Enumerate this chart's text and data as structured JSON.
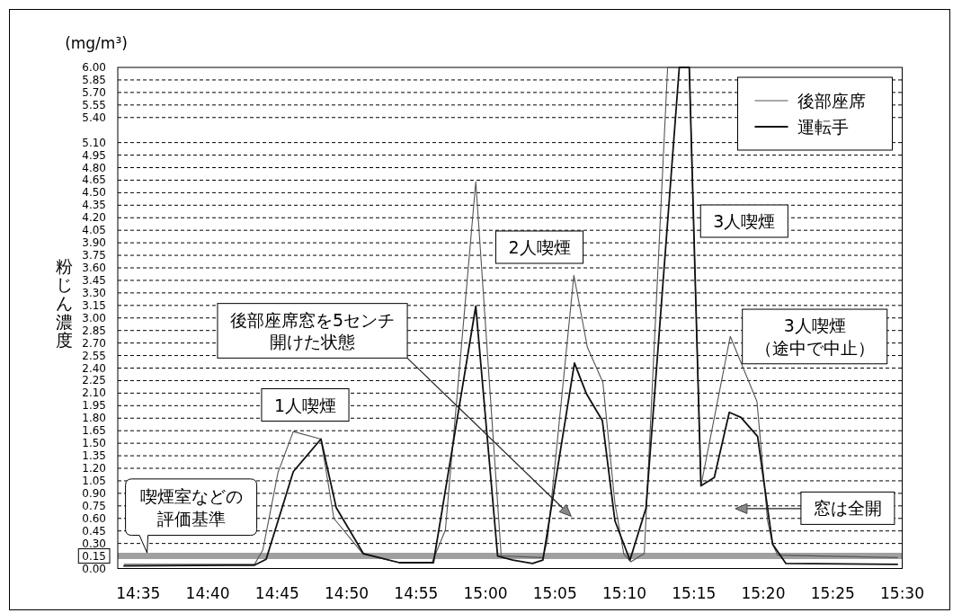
{
  "chart_data": {
    "type": "line",
    "ylabel": "粉じん濃度",
    "xlim": [
      14.5587,
      15.5
    ],
    "ylim": [
      0,
      6
    ],
    "xticks": [
      {
        "value": 14.5833,
        "label": "14:35"
      },
      {
        "value": 14.6667,
        "label": "14:40"
      },
      {
        "value": 14.75,
        "label": "14:45"
      },
      {
        "value": 14.8333,
        "label": "14:50"
      },
      {
        "value": 14.9167,
        "label": "14:55"
      },
      {
        "value": 15.0,
        "label": "15:00"
      },
      {
        "value": 15.0833,
        "label": "15:05"
      },
      {
        "value": 15.1667,
        "label": "15:10"
      },
      {
        "value": 15.25,
        "label": "15:15"
      },
      {
        "value": 15.3333,
        "label": "15:20"
      },
      {
        "value": 15.4167,
        "label": "15:25"
      },
      {
        "value": 15.5,
        "label": "15:30"
      }
    ],
    "yticks": [
      {
        "value": 0,
        "label": "0.00"
      },
      {
        "value": 0.15,
        "label": "0.15"
      },
      {
        "value": 0.3,
        "label": "0.30"
      },
      {
        "value": 0.45,
        "label": "0.45"
      },
      {
        "value": 0.6,
        "label": "0.60"
      },
      {
        "value": 0.75,
        "label": "0.75"
      },
      {
        "value": 0.9,
        "label": "0.90"
      },
      {
        "value": 1.05,
        "label": "1.05"
      },
      {
        "value": 1.2,
        "label": "1.20"
      },
      {
        "value": 1.35,
        "label": "1.35"
      },
      {
        "value": 1.5,
        "label": "1.50"
      },
      {
        "value": 1.65,
        "label": "1.65"
      },
      {
        "value": 1.8,
        "label": "1.80"
      },
      {
        "value": 1.95,
        "label": "1.95"
      },
      {
        "value": 2.1,
        "label": "2.10"
      },
      {
        "value": 2.25,
        "label": "2.25"
      },
      {
        "value": 2.4,
        "label": "2.40"
      },
      {
        "value": 2.55,
        "label": "2.55"
      },
      {
        "value": 2.7,
        "label": "2.70"
      },
      {
        "value": 2.85,
        "label": "2.85"
      },
      {
        "value": 3.0,
        "label": "3.00"
      },
      {
        "value": 3.15,
        "label": "3.15"
      },
      {
        "value": 3.3,
        "label": "3.30"
      },
      {
        "value": 3.45,
        "label": "3.45"
      },
      {
        "value": 3.6,
        "label": "3.60"
      },
      {
        "value": 3.75,
        "label": "3.75"
      },
      {
        "value": 3.9,
        "label": "3.90"
      },
      {
        "value": 4.05,
        "label": "4.05"
      },
      {
        "value": 4.2,
        "label": "4.20"
      },
      {
        "value": 4.35,
        "label": "4.35"
      },
      {
        "value": 4.5,
        "label": "4.50"
      },
      {
        "value": 4.65,
        "label": "4.65"
      },
      {
        "value": 4.8,
        "label": "4.80"
      },
      {
        "value": 4.95,
        "label": "4.95"
      },
      {
        "value": 5.1,
        "label": "5.10"
      },
      {
        "value": 5.4,
        "label": "5.40"
      },
      {
        "value": 5.55,
        "label": "5.55"
      },
      {
        "value": 5.7,
        "label": "5.70"
      },
      {
        "value": 5.85,
        "label": "5.85"
      },
      {
        "value": 6.0,
        "label": "6.00"
      }
    ],
    "grid": "y",
    "legend": "top right",
    "ref_lines": [
      {
        "axis": "y",
        "value": 0.15,
        "label": "喫煙室などの評価基準",
        "color": "#a0a0a0"
      }
    ],
    "annotations": [
      "(mg/m³)",
      "1人喫煙",
      "後部座席窓を5センチ開けた状態",
      "2人喫煙",
      "3人喫煙",
      "3人喫煙（途中で中止）",
      "窓は全開"
    ],
    "series": [
      {
        "name": "後部座席",
        "color": "#555555",
        "x": [
          14.5663,
          14.7228,
          14.7327,
          14.751,
          14.7693,
          14.8025,
          14.818,
          14.8533,
          14.8967,
          14.9357,
          14.9518,
          14.9883,
          15.0188,
          15.0688,
          15.0743,
          15.106,
          15.1222,
          15.1408,
          15.1553,
          15.166,
          15.1745,
          15.1905,
          15.2185,
          15.2445,
          15.2585,
          15.2937,
          15.3257,
          15.3385,
          15.3445,
          15.3505,
          15.4942
        ],
        "values": [
          0.05,
          0.05,
          0.22,
          1.15,
          1.64,
          1.55,
          0.6,
          0.17,
          0.07,
          0.07,
          0.46,
          4.63,
          0.15,
          0.13,
          0.34,
          3.51,
          2.65,
          2.23,
          0.78,
          0.17,
          0.08,
          0.18,
          6.0,
          6.0,
          0.99,
          2.78,
          2.0,
          0.57,
          0.29,
          0.16,
          0.13
        ]
      },
      {
        "name": "運転手",
        "color": "#111111",
        "x": [
          14.5663,
          14.7228,
          14.7367,
          14.7693,
          14.8025,
          14.8208,
          14.8533,
          14.8967,
          14.9375,
          14.9883,
          15.0145,
          15.0328,
          15.0563,
          15.0688,
          15.1067,
          15.1212,
          15.1402,
          15.1553,
          15.1733,
          15.1925,
          15.2325,
          15.2445,
          15.2585,
          15.2745,
          15.2925,
          15.3065,
          15.3265,
          15.3445,
          15.3605,
          15.4942
        ],
        "values": [
          0.03,
          0.04,
          0.11,
          1.16,
          1.55,
          0.73,
          0.18,
          0.07,
          0.07,
          3.14,
          0.15,
          0.1,
          0.06,
          0.1,
          2.46,
          2.09,
          1.77,
          0.57,
          0.1,
          0.72,
          6.0,
          6.0,
          0.99,
          1.09,
          1.87,
          1.81,
          1.58,
          0.29,
          0.06,
          0.05
        ]
      }
    ]
  }
}
